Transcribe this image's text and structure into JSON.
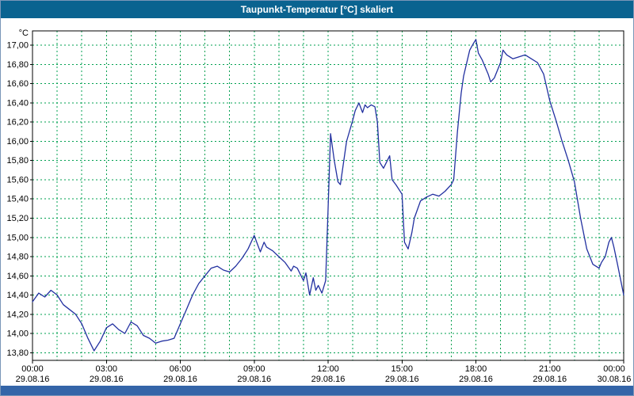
{
  "window": {
    "title": "Taupunkt-Temperatur [°C] skaliert"
  },
  "colors": {
    "title_bg": "#0a6390",
    "title_text": "#ffffff",
    "frame_border": "#7a96b8",
    "bottom_strip": "#3465a8",
    "plot_bg": "#ffffff",
    "grid": "#00a050",
    "axis": "#000000",
    "line": "#2230a0"
  },
  "chart_data": {
    "type": "line",
    "title": "Taupunkt-Temperatur [°C] skaliert",
    "ylabel_unit": "°C",
    "grid": true,
    "legend_position": "none",
    "ylim": [
      13.72,
      17.15
    ],
    "yticks": [
      13.8,
      14.0,
      14.2,
      14.4,
      14.6,
      14.8,
      15.0,
      15.2,
      15.4,
      15.6,
      15.8,
      16.0,
      16.2,
      16.4,
      16.6,
      16.8,
      17.0
    ],
    "ytick_labels": [
      "13,80",
      "14,00",
      "14,20",
      "14,40",
      "14,60",
      "14,80",
      "15,00",
      "15,20",
      "15,40",
      "15,60",
      "15,80",
      "16,00",
      "16,20",
      "16,40",
      "16,60",
      "16,80",
      "17,00"
    ],
    "x_range_hours": [
      0,
      24
    ],
    "hour_grid_step": 1,
    "xticks": [
      {
        "hour": 0,
        "time": "00:00",
        "date": "29.08.16"
      },
      {
        "hour": 3,
        "time": "03:00",
        "date": "29.08.16"
      },
      {
        "hour": 6,
        "time": "06:00",
        "date": "29.08.16"
      },
      {
        "hour": 9,
        "time": "09:00",
        "date": "29.08.16"
      },
      {
        "hour": 12,
        "time": "12:00",
        "date": "29.08.16"
      },
      {
        "hour": 15,
        "time": "15:00",
        "date": "29.08.16"
      },
      {
        "hour": 18,
        "time": "18:00",
        "date": "29.08.16"
      },
      {
        "hour": 21,
        "time": "21:00",
        "date": "29.08.16"
      },
      {
        "hour": 24,
        "time": "00:00",
        "date": "30.08.16"
      }
    ],
    "series": [
      {
        "name": "Taupunkt-Temperatur",
        "x": [
          0,
          0.25,
          0.5,
          0.75,
          1,
          1.25,
          1.5,
          1.75,
          2,
          2.25,
          2.5,
          2.75,
          3,
          3.25,
          3.5,
          3.75,
          4,
          4.25,
          4.5,
          4.75,
          5,
          5.25,
          5.5,
          5.75,
          6,
          6.25,
          6.5,
          6.75,
          7,
          7.25,
          7.5,
          7.75,
          8,
          8.25,
          8.5,
          8.75,
          9,
          9.1,
          9.25,
          9.4,
          9.5,
          9.75,
          10,
          10.25,
          10.5,
          10.6,
          10.75,
          11,
          11.1,
          11.25,
          11.4,
          11.5,
          11.6,
          11.75,
          11.9,
          12,
          12.1,
          12.25,
          12.4,
          12.5,
          12.75,
          13,
          13.1,
          13.25,
          13.4,
          13.5,
          13.6,
          13.75,
          13.9,
          14,
          14.1,
          14.25,
          14.5,
          14.6,
          14.75,
          15,
          15.1,
          15.25,
          15.4,
          15.5,
          15.75,
          16,
          16.25,
          16.5,
          16.75,
          17,
          17.1,
          17.25,
          17.4,
          17.5,
          17.75,
          17.9,
          18,
          18.1,
          18.25,
          18.5,
          18.6,
          18.75,
          19,
          19.1,
          19.25,
          19.5,
          19.75,
          20,
          20.25,
          20.5,
          20.75,
          21,
          21.25,
          21.5,
          21.75,
          22,
          22.25,
          22.5,
          22.75,
          23,
          23.1,
          23.25,
          23.4,
          23.5,
          23.6,
          23.75,
          24
        ],
        "y": [
          14.33,
          14.42,
          14.38,
          14.45,
          14.4,
          14.3,
          14.25,
          14.2,
          14.1,
          13.95,
          13.82,
          13.92,
          14.06,
          14.1,
          14.04,
          14.0,
          14.12,
          14.08,
          13.98,
          13.95,
          13.9,
          13.92,
          13.93,
          13.95,
          14.1,
          14.25,
          14.4,
          14.52,
          14.6,
          14.68,
          14.7,
          14.66,
          14.64,
          14.7,
          14.78,
          14.88,
          15.02,
          14.95,
          14.85,
          14.95,
          14.9,
          14.86,
          14.8,
          14.74,
          14.65,
          14.7,
          14.68,
          14.55,
          14.63,
          14.4,
          14.58,
          14.45,
          14.5,
          14.42,
          14.55,
          15.3,
          16.08,
          15.8,
          15.58,
          15.55,
          16.0,
          16.22,
          16.32,
          16.4,
          16.3,
          16.38,
          16.35,
          16.38,
          16.36,
          16.2,
          15.78,
          15.72,
          15.85,
          15.6,
          15.55,
          15.45,
          14.95,
          14.88,
          15.05,
          15.2,
          15.38,
          15.42,
          15.45,
          15.43,
          15.48,
          15.55,
          15.6,
          16.1,
          16.5,
          16.68,
          16.95,
          17.02,
          17.06,
          16.92,
          16.85,
          16.7,
          16.62,
          16.66,
          16.82,
          16.95,
          16.9,
          16.86,
          16.88,
          16.9,
          16.86,
          16.82,
          16.7,
          16.42,
          16.22,
          16.0,
          15.8,
          15.58,
          15.2,
          14.88,
          14.72,
          14.68,
          14.74,
          14.8,
          14.95,
          15.0,
          14.9,
          14.72,
          14.4
        ]
      }
    ]
  }
}
